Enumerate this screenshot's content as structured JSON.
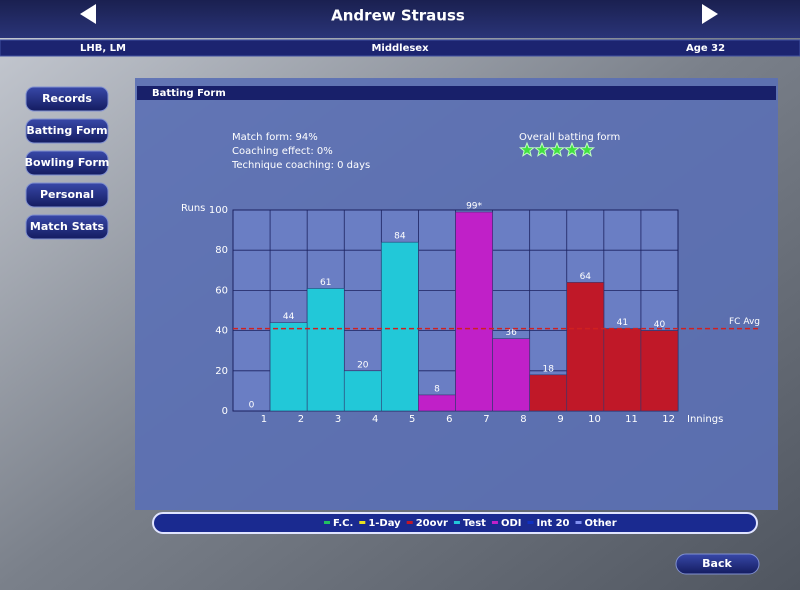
{
  "header": {
    "player_name": "Andrew Strauss",
    "style": "LHB, LM",
    "team": "Middlesex",
    "age": "Age 32"
  },
  "nav": [
    "Records",
    "Batting Form",
    "Bowling Form",
    "Personal",
    "Match Stats"
  ],
  "panel": {
    "title": "Batting Form",
    "stats": [
      "Match form: 94%",
      "Coaching effect: 0%",
      "Technique coaching: 0 days"
    ],
    "overall_label": "Overall batting form",
    "stars": 5
  },
  "chart_data": {
    "type": "bar",
    "y_label": "Runs",
    "x_label": "Innings",
    "categories": [
      "1",
      "2",
      "3",
      "4",
      "5",
      "6",
      "7",
      "8",
      "9",
      "10",
      "11",
      "12"
    ],
    "values": [
      0,
      44,
      61,
      20,
      84,
      8,
      99,
      36,
      18,
      64,
      41,
      40
    ],
    "value_labels": [
      "0",
      "44",
      "61",
      "20",
      "84",
      "8",
      "99*",
      "36",
      "18",
      "64",
      "41",
      "40"
    ],
    "colors": [
      "#22c060",
      "#22c8d8",
      "#22c8d8",
      "#22c8d8",
      "#22c8d8",
      "#c020c8",
      "#c020c8",
      "#c020c8",
      "#c01828",
      "#c01828",
      "#c01828",
      "#c01828"
    ],
    "ylim": [
      0,
      100
    ],
    "yticks": [
      0,
      20,
      40,
      60,
      80,
      100
    ],
    "grid": true,
    "reference_line": {
      "label": "FC Avg",
      "value": 41,
      "color": "#d02020"
    },
    "legend": [
      {
        "name": "F.C.",
        "color": "#22c060"
      },
      {
        "name": "1-Day",
        "color": "#e8e020"
      },
      {
        "name": "20ovr",
        "color": "#c01828"
      },
      {
        "name": "Test",
        "color": "#22c8d8"
      },
      {
        "name": "ODI",
        "color": "#c020c8"
      },
      {
        "name": "Int 20",
        "color": "#1030c0"
      },
      {
        "name": "Other",
        "color": "#8090f0"
      }
    ]
  },
  "back_button": "Back"
}
